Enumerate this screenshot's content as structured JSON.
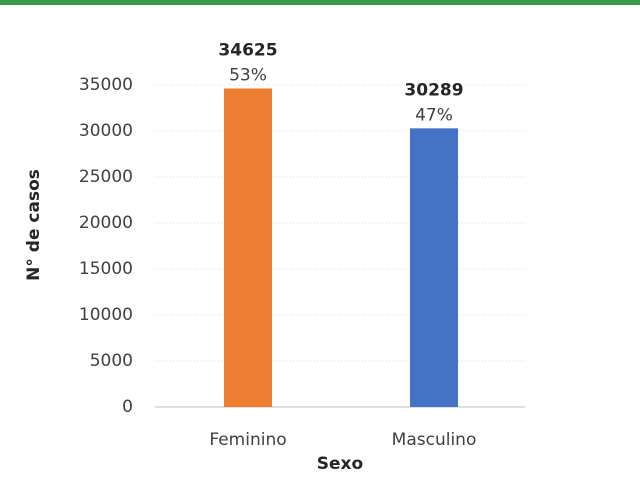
{
  "chart_data": {
    "type": "bar",
    "x_label": "Sexo",
    "y_label": "N° de casos",
    "categories": [
      "Feminino",
      "Masculino"
    ],
    "values": [
      34625,
      30289
    ],
    "percent_labels": [
      "53%",
      "47%"
    ],
    "colors": [
      "#ed7d31",
      "#4472c4"
    ],
    "ylim": [
      0,
      35000
    ],
    "yticks": [
      0,
      5000,
      10000,
      15000,
      20000,
      25000,
      30000,
      35000
    ],
    "grid": true
  }
}
